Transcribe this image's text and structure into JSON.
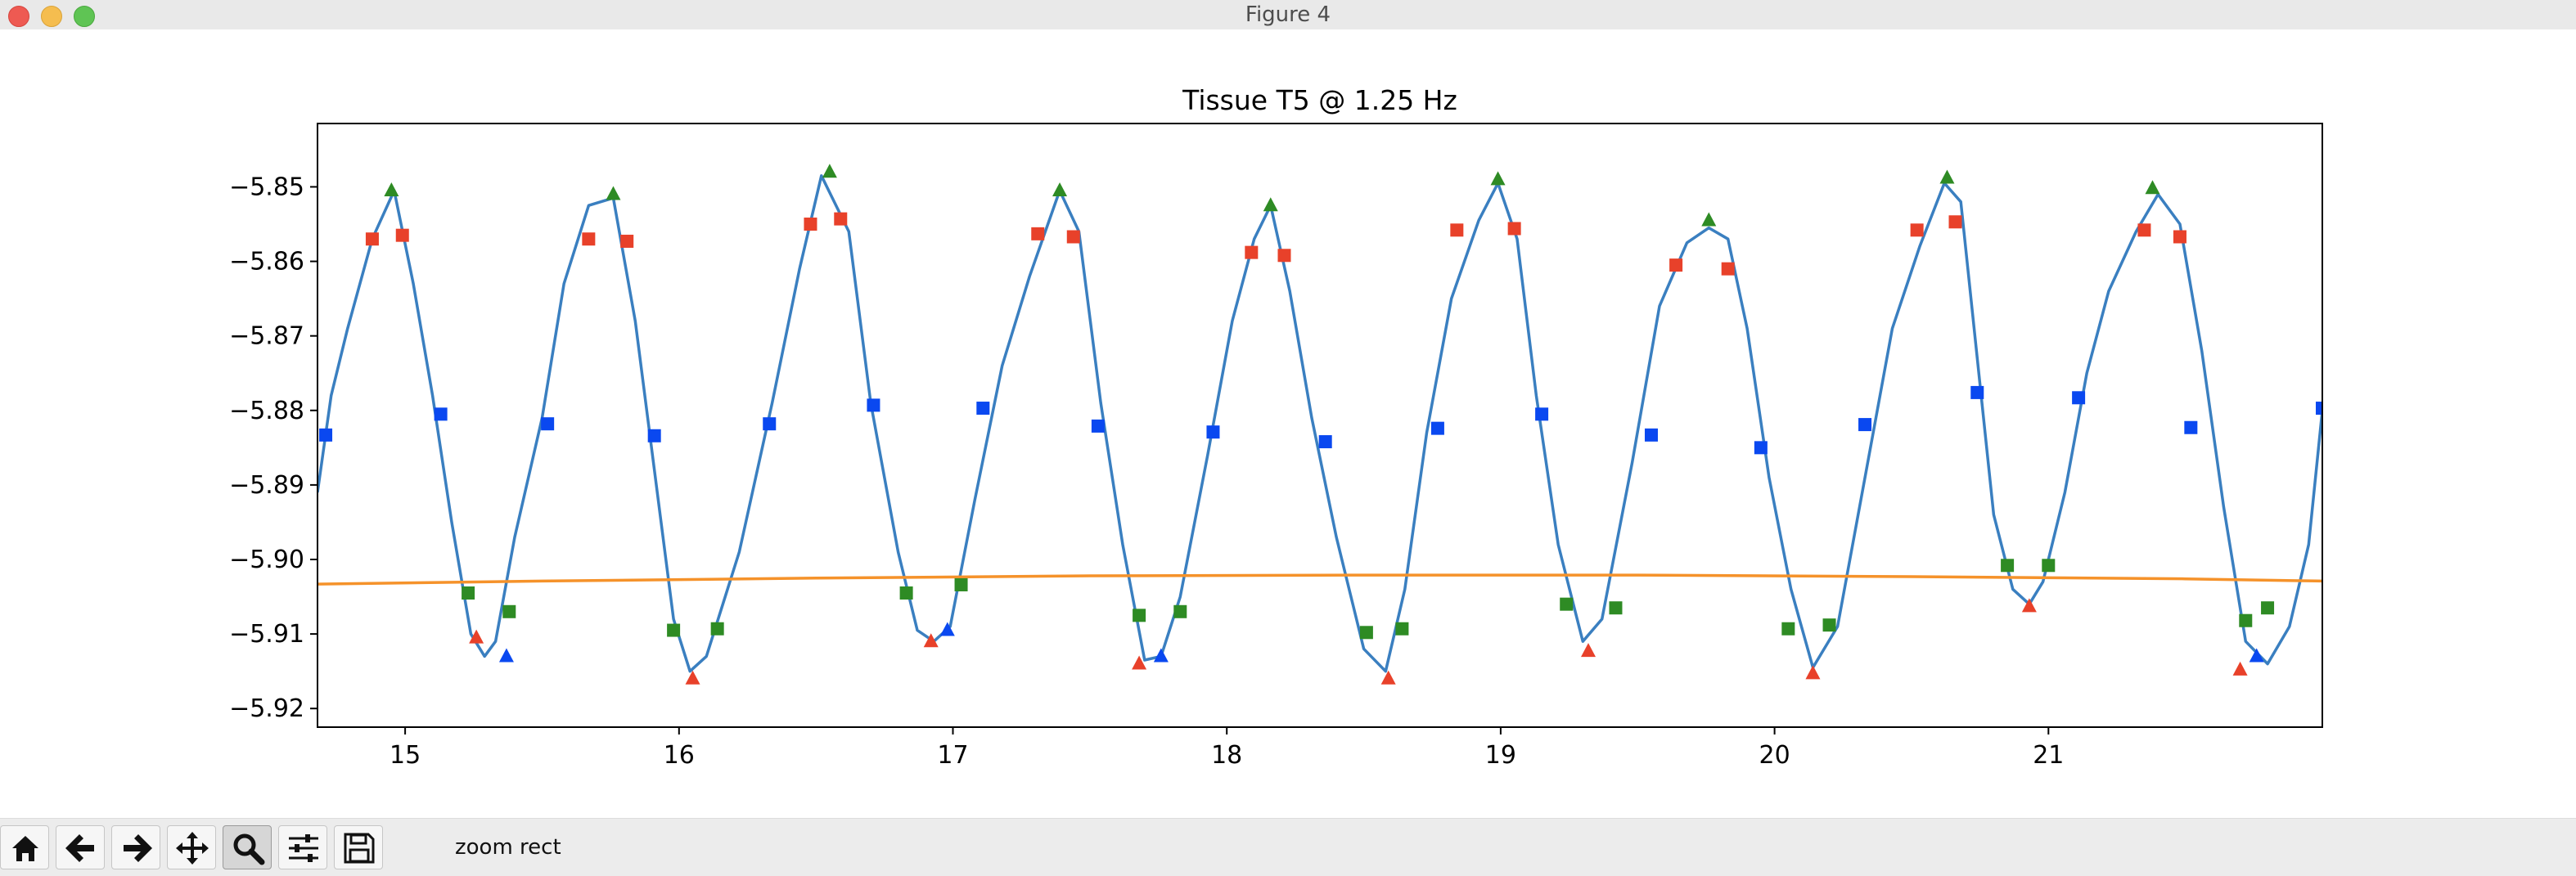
{
  "window": {
    "title": "Figure 4"
  },
  "toolbar": {
    "buttons": [
      {
        "name": "home-button",
        "icon": "home-icon"
      },
      {
        "name": "back-button",
        "icon": "arrow-left-icon"
      },
      {
        "name": "forward-button",
        "icon": "arrow-right-icon"
      },
      {
        "name": "pan-button",
        "icon": "move-icon"
      },
      {
        "name": "zoom-button",
        "icon": "magnifier-icon",
        "active": true
      },
      {
        "name": "configure-subplots-button",
        "icon": "sliders-icon"
      },
      {
        "name": "save-button",
        "icon": "floppy-disk-icon"
      }
    ],
    "status": "zoom rect"
  },
  "chart_data": {
    "type": "line",
    "title": "Tissue T5 @ 1.25 Hz",
    "xlabel": "",
    "ylabel": "",
    "xlim": [
      14.68,
      22.0
    ],
    "ylim": [
      -5.9225,
      -5.8415
    ],
    "xticks": [
      15,
      16,
      17,
      18,
      19,
      20,
      21
    ],
    "yticks": [
      -5.85,
      -5.86,
      -5.87,
      -5.88,
      -5.89,
      -5.9,
      -5.91,
      -5.92
    ],
    "xtick_labels": [
      "15",
      "16",
      "17",
      "18",
      "19",
      "20",
      "21"
    ],
    "ytick_labels": [
      "−5.85",
      "−5.86",
      "−5.87",
      "−5.88",
      "−5.89",
      "−5.90",
      "−5.91",
      "−5.92"
    ],
    "grid": false,
    "colors": {
      "signal": "#3a7fc0",
      "baseline": "#f5922a",
      "red": "#e8412a",
      "green": "#2e8b24",
      "blue": "#0a48f0"
    },
    "series": [
      {
        "style": "line",
        "color": "#3a7fc0",
        "x": [
          14.68,
          14.73,
          14.79,
          14.88,
          14.96,
          15.03,
          15.1,
          15.17,
          15.24,
          15.29,
          15.33,
          15.4,
          15.5,
          15.58,
          15.67,
          15.76,
          15.84,
          15.91,
          15.98,
          16.04,
          16.1,
          16.22,
          16.34,
          16.44,
          16.52,
          16.62,
          16.7,
          16.8,
          16.87,
          16.93,
          16.99,
          17.08,
          17.18,
          17.28,
          17.39,
          17.46,
          17.54,
          17.62,
          17.7,
          17.76,
          17.83,
          17.93,
          18.02,
          18.1,
          18.16,
          18.23,
          18.31,
          18.4,
          18.5,
          18.58,
          18.65,
          18.73,
          18.82,
          18.92,
          18.99,
          19.06,
          19.13,
          19.21,
          19.3,
          19.37,
          19.48,
          19.58,
          19.68,
          19.76,
          19.83,
          19.9,
          19.98,
          20.06,
          20.14,
          20.23,
          20.33,
          20.43,
          20.53,
          20.62,
          20.68,
          20.74,
          20.8,
          20.87,
          20.93,
          20.98,
          21.06,
          21.14,
          21.22,
          21.32,
          21.4,
          21.48,
          21.56,
          21.64,
          21.72,
          21.8,
          21.88,
          21.95,
          22.0
        ],
        "y": [
          -5.891,
          -5.878,
          -5.869,
          -5.857,
          -5.8505,
          -5.863,
          -5.878,
          -5.895,
          -5.91,
          -5.913,
          -5.911,
          -5.897,
          -5.881,
          -5.863,
          -5.8525,
          -5.8515,
          -5.868,
          -5.888,
          -5.908,
          -5.915,
          -5.913,
          -5.899,
          -5.879,
          -5.861,
          -5.8485,
          -5.856,
          -5.879,
          -5.899,
          -5.9095,
          -5.911,
          -5.909,
          -5.892,
          -5.874,
          -5.862,
          -5.8505,
          -5.856,
          -5.879,
          -5.898,
          -5.9135,
          -5.913,
          -5.905,
          -5.886,
          -5.868,
          -5.857,
          -5.8525,
          -5.864,
          -5.881,
          -5.897,
          -5.912,
          -5.915,
          -5.904,
          -5.883,
          -5.865,
          -5.8545,
          -5.8495,
          -5.857,
          -5.878,
          -5.898,
          -5.911,
          -5.908,
          -5.887,
          -5.866,
          -5.8575,
          -5.8555,
          -5.857,
          -5.869,
          -5.889,
          -5.904,
          -5.9145,
          -5.909,
          -5.889,
          -5.869,
          -5.858,
          -5.8495,
          -5.852,
          -5.873,
          -5.894,
          -5.904,
          -5.906,
          -5.903,
          -5.891,
          -5.875,
          -5.864,
          -5.856,
          -5.851,
          -5.855,
          -5.872,
          -5.893,
          -5.911,
          -5.914,
          -5.909,
          -5.898,
          -5.88
        ]
      },
      {
        "style": "line",
        "color": "#f5922a",
        "x": [
          14.68,
          15.5,
          16.5,
          17.5,
          18.5,
          19.0,
          19.5,
          20.5,
          21.5,
          22.0
        ],
        "y": [
          -5.9033,
          -5.9029,
          -5.9025,
          -5.9022,
          -5.9021,
          -5.9021,
          -5.9021,
          -5.9023,
          -5.9026,
          -5.9029
        ]
      },
      {
        "style": "square",
        "color": "#0a48f0",
        "x": [
          14.71,
          15.13,
          15.52,
          15.91,
          16.33,
          16.71,
          17.11,
          17.53,
          17.95,
          18.36,
          18.77,
          19.15,
          19.55,
          19.95,
          20.33,
          20.74,
          21.11,
          21.52,
          22.0
        ],
        "y": [
          -5.8833,
          -5.8805,
          -5.8818,
          -5.8834,
          -5.8818,
          -5.8793,
          -5.8797,
          -5.8821,
          -5.8829,
          -5.8842,
          -5.8824,
          -5.8805,
          -5.8833,
          -5.885,
          -5.8819,
          -5.8776,
          -5.8783,
          -5.8823,
          -5.8797
        ]
      },
      {
        "style": "square",
        "color": "#e8412a",
        "x": [
          14.88,
          14.99,
          15.67,
          15.81,
          16.48,
          16.59,
          17.31,
          17.44,
          18.09,
          18.21,
          18.84,
          19.05,
          19.64,
          19.83,
          20.52,
          20.66,
          21.35,
          21.48
        ],
        "y": [
          -5.857,
          -5.8565,
          -5.857,
          -5.8573,
          -5.855,
          -5.8543,
          -5.8563,
          -5.8567,
          -5.8588,
          -5.8592,
          -5.8558,
          -5.8556,
          -5.8605,
          -5.861,
          -5.8558,
          -5.8547,
          -5.8558,
          -5.8567
        ]
      },
      {
        "style": "square",
        "color": "#2e8b24",
        "x": [
          15.23,
          15.38,
          15.98,
          16.14,
          16.83,
          17.03,
          17.68,
          17.83,
          18.51,
          18.64,
          19.24,
          19.42,
          20.05,
          20.2,
          20.85,
          21.0,
          21.72,
          21.8
        ],
        "y": [
          -5.9045,
          -5.907,
          -5.9095,
          -5.9093,
          -5.9045,
          -5.9034,
          -5.9075,
          -5.907,
          -5.9098,
          -5.9093,
          -5.906,
          -5.9065,
          -5.9093,
          -5.9088,
          -5.9008,
          -5.9008,
          -5.9082,
          -5.9065
        ]
      },
      {
        "style": "triangle",
        "color": "#e8412a",
        "x": [
          15.26,
          16.05,
          16.92,
          17.68,
          18.59,
          19.32,
          20.14,
          20.93,
          21.7
        ],
        "y": [
          -5.9105,
          -5.916,
          -5.911,
          -5.914,
          -5.916,
          -5.9123,
          -5.9153,
          -5.9063,
          -5.9148
        ]
      },
      {
        "style": "triangle",
        "color": "#2e8b24",
        "x": [
          14.95,
          15.76,
          16.55,
          17.39,
          18.16,
          18.99,
          19.76,
          20.63,
          21.38
        ],
        "y": [
          -5.8505,
          -5.851,
          -5.848,
          -5.8505,
          -5.8525,
          -5.849,
          -5.8545,
          -5.8488,
          -5.8502
        ]
      },
      {
        "style": "triangle",
        "color": "#0a48f0",
        "x": [
          15.37,
          16.98,
          17.76,
          21.76
        ],
        "y": [
          -5.913,
          -5.9095,
          -5.913,
          -5.913
        ]
      }
    ]
  }
}
